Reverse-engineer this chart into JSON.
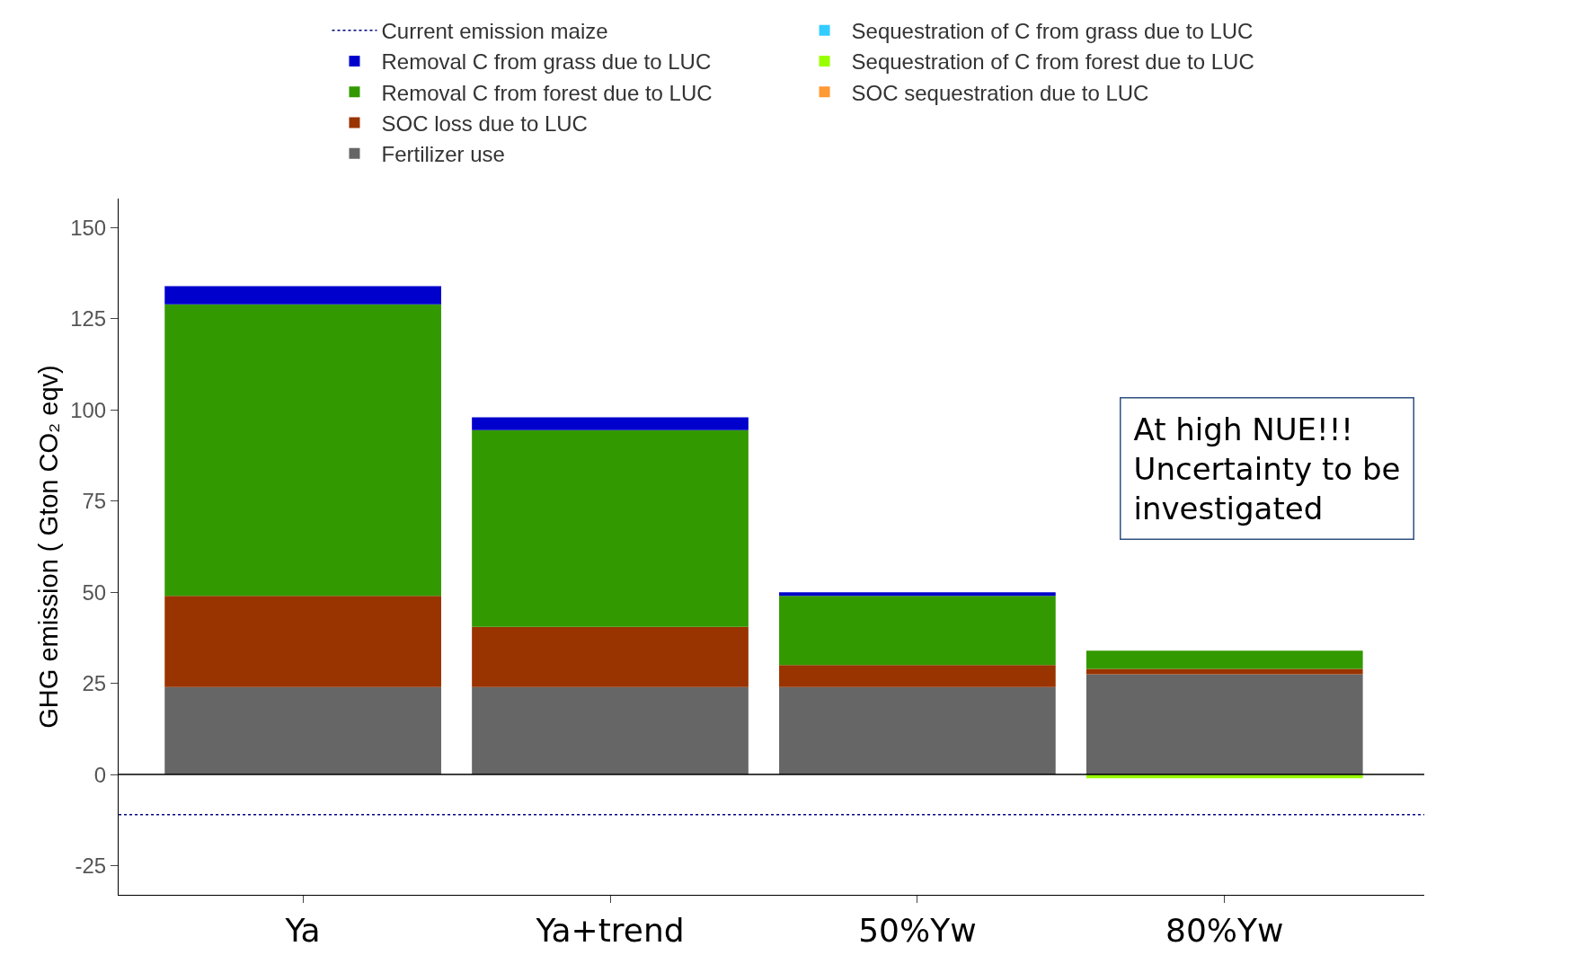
{
  "chart_data": {
    "type": "bar",
    "stacked": true,
    "ylabel": "GHG emission ( Gton CO₂ eqv)",
    "categories": [
      "Ya",
      "Ya+trend",
      "50%Yw",
      "80%Yw"
    ],
    "series": [
      {
        "name": "Fertilizer use",
        "color": "#666666",
        "values": [
          24,
          24,
          24,
          27.5
        ]
      },
      {
        "name": "SOC loss due to LUC",
        "color": "#993300",
        "values": [
          25,
          16.5,
          6,
          1.5
        ]
      },
      {
        "name": "Removal C from forest due to LUC",
        "color": "#339900",
        "values": [
          80,
          54,
          19,
          5
        ]
      },
      {
        "name": "Removal C from grass due to LUC",
        "color": "#0000cc",
        "values": [
          5,
          3.5,
          1,
          0
        ]
      },
      {
        "name": "Sequestration of C from grass due to LUC",
        "color": "#33ccff",
        "values": [
          0,
          0,
          0,
          0
        ]
      },
      {
        "name": "Sequestration of C from forest due to LUC",
        "color": "#99ff00",
        "values": [
          0,
          0,
          0,
          -1
        ]
      },
      {
        "name": "SOC sequestration due to LUC",
        "color": "#ff9933",
        "values": [
          0,
          0,
          0,
          0
        ]
      }
    ],
    "ref_lines": [
      {
        "axis": "y",
        "value": -11,
        "label": "Current emission maize",
        "color": "#000080",
        "line_style": "dotted"
      },
      {
        "axis": "y",
        "value": 0,
        "color": "#000000",
        "line_style": "solid"
      }
    ],
    "ylim": [
      -33,
      158
    ],
    "yticks": [
      -25,
      0,
      25,
      50,
      75,
      100,
      125,
      150
    ],
    "grid": false,
    "legend": "top",
    "annotations": [
      "At high NUE!!!\nUncertainty to be\ninvestigated"
    ]
  }
}
